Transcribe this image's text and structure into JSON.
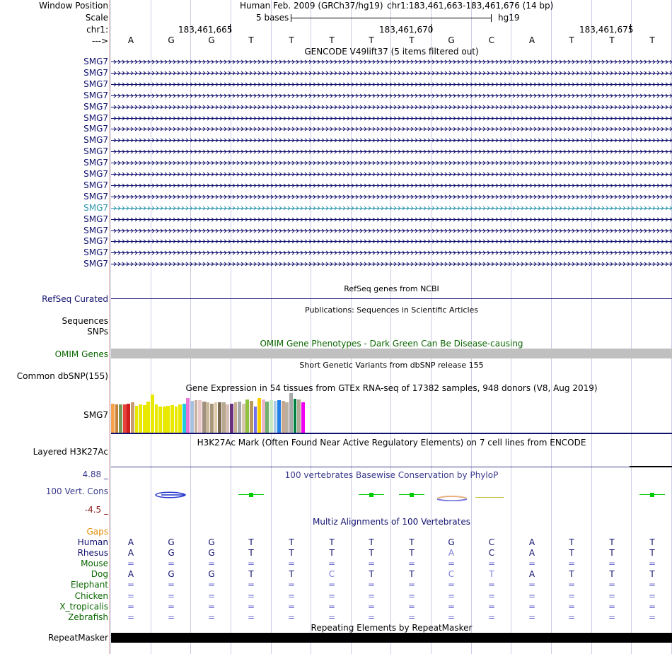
{
  "colors": {
    "gene_navy": "#10106e",
    "gene_highlight": "#2c96ad",
    "omim_green": "#0a6600",
    "gaps_orange": "#e08a00",
    "cons_blue": "#3a3a8c",
    "cons_red": "#8a1a1a",
    "phylop_green": "#00cc00",
    "repeat_black": "#000000",
    "omim_bar_gray": "#c0c0c0"
  },
  "header": {
    "window_position_label": "Window Position",
    "assembly": "Human Feb. 2009 (GRCh37/hg19)",
    "position": "chr1:183,461,663-183,461,676 (14 bp)",
    "scale_label": "Scale",
    "scale_text": "5 bases",
    "scale_db": "hg19",
    "chrom_label": "chr1:",
    "coord_ticks": [
      "183,461,665",
      "183,461,670",
      "183,461,675"
    ],
    "strand_label": "--->",
    "sequence": [
      "A",
      "G",
      "G",
      "T",
      "T",
      "T",
      "T",
      "T",
      "G",
      "C",
      "A",
      "T",
      "T",
      "T"
    ]
  },
  "gencode": {
    "title": "GENCODE V49lift37 (5 items filtered out)",
    "genes": [
      "SMG7",
      "SMG7",
      "SMG7",
      "SMG7",
      "SMG7",
      "SMG7",
      "SMG7",
      "SMG7",
      "SMG7",
      "SMG7",
      "SMG7",
      "SMG7",
      "SMG7",
      "SMG7",
      "SMG7",
      "SMG7",
      "SMG7",
      "SMG7",
      "SMG7"
    ],
    "highlight_index": 13
  },
  "refseq": {
    "title": "RefSeq genes from NCBI",
    "label": "RefSeq Curated"
  },
  "publications": {
    "title": "Publications: Sequences in Scientific Articles",
    "label1": "Sequences",
    "label2": "SNPs"
  },
  "omim": {
    "title": "OMIM Gene Phenotypes - Dark Green Can Be Disease-causing",
    "label": "OMIM Genes"
  },
  "dbsnp": {
    "title": "Short Genetic Variants from dbSNP release 155",
    "label": "Common dbSNP(155)"
  },
  "gtex": {
    "title": "Gene Expression in 54 tissues from GTEx RNA-seq of 17382 samples, 948 donors (V8, Aug 2019)",
    "label": "SMG7",
    "bars": [
      {
        "v": 0.74,
        "c": "#f5a24a"
      },
      {
        "v": 0.72,
        "c": "#c47f38"
      },
      {
        "v": 0.71,
        "c": "#7a9a5a"
      },
      {
        "v": 0.72,
        "c": "#e8423a"
      },
      {
        "v": 0.73,
        "c": "#d11e1e"
      },
      {
        "v": 0.76,
        "c": "#c89d74"
      },
      {
        "v": 0.68,
        "c": "#e8e800"
      },
      {
        "v": 0.72,
        "c": "#e8e800"
      },
      {
        "v": 0.7,
        "c": "#e8e800"
      },
      {
        "v": 0.78,
        "c": "#e8e800"
      },
      {
        "v": 0.96,
        "c": "#e8e800"
      },
      {
        "v": 0.72,
        "c": "#e8e800"
      },
      {
        "v": 0.66,
        "c": "#e8e800"
      },
      {
        "v": 0.66,
        "c": "#e8e800"
      },
      {
        "v": 0.68,
        "c": "#e8e800"
      },
      {
        "v": 0.7,
        "c": "#e8e800"
      },
      {
        "v": 0.66,
        "c": "#e8e800"
      },
      {
        "v": 0.72,
        "c": "#e8e800"
      },
      {
        "v": 0.74,
        "c": "#22ccdd"
      },
      {
        "v": 0.88,
        "c": "#ea74d6"
      },
      {
        "v": 0.8,
        "c": "#a8c0e0"
      },
      {
        "v": 0.82,
        "c": "#c8b0a0"
      },
      {
        "v": 0.82,
        "c": "#e8c8c8"
      },
      {
        "v": 0.78,
        "c": "#a09080"
      },
      {
        "v": 0.76,
        "c": "#c8b898"
      },
      {
        "v": 0.74,
        "c": "#a89878"
      },
      {
        "v": 0.76,
        "c": "#e0c8a8"
      },
      {
        "v": 0.76,
        "c": "#7a6a50"
      },
      {
        "v": 0.76,
        "c": "#b8a890"
      },
      {
        "v": 0.72,
        "c": "#d8c0b8"
      },
      {
        "v": 0.74,
        "c": "#6a3080"
      },
      {
        "v": 0.76,
        "c": "#c8b090"
      },
      {
        "v": 0.78,
        "c": "#a8a8a8"
      },
      {
        "v": 0.74,
        "c": "#d8c8b0"
      },
      {
        "v": 0.84,
        "c": "#90c040"
      },
      {
        "v": 0.8,
        "c": "#b89860"
      },
      {
        "v": 0.66,
        "c": "#7070f0"
      },
      {
        "v": 0.88,
        "c": "#f8d000"
      },
      {
        "v": 0.84,
        "c": "#e8b8c8"
      },
      {
        "v": 0.78,
        "c": "#70b070"
      },
      {
        "v": 0.82,
        "c": "#c8e8c0"
      },
      {
        "v": 0.8,
        "c": "#a8c8e8"
      },
      {
        "v": 0.82,
        "c": "#2080e8"
      },
      {
        "v": 0.8,
        "c": "#c8a890"
      },
      {
        "v": 0.76,
        "c": "#b8b0a0"
      },
      {
        "v": 1.0,
        "c": "#a8a8a8"
      },
      {
        "v": 0.86,
        "c": "#008040"
      },
      {
        "v": 0.84,
        "c": "#b0a890"
      },
      {
        "v": 0.76,
        "c": "#f000f0"
      }
    ]
  },
  "h3k27ac": {
    "title": "H3K27Ac Mark (Often Found Near Active Regulatory Elements) on 7 cell lines from ENCODE",
    "label": "Layered H3K27Ac"
  },
  "phylop": {
    "title": "100 vertebrates Basewise Conservation by PhyloP",
    "label": "100 Vert. Cons",
    "max_label": "4.88 _",
    "min_label": "-4.5 _",
    "marks": [
      {
        "pos": 3,
        "type": "green"
      },
      {
        "pos": 6,
        "type": "green"
      },
      {
        "pos": 7,
        "type": "green"
      },
      {
        "pos": 13,
        "type": "green"
      }
    ]
  },
  "multiz": {
    "title": "Multiz Alignments of 100 Vertebrates",
    "gaps_label": "Gaps",
    "species": [
      {
        "name": "Human",
        "seq": [
          "A",
          "G",
          "G",
          "T",
          "T",
          "T",
          "T",
          "T",
          "G",
          "C",
          "A",
          "T",
          "T",
          "T"
        ],
        "dim": []
      },
      {
        "name": "Rhesus",
        "seq": [
          "A",
          "G",
          "G",
          "T",
          "T",
          "T",
          "T",
          "T",
          "A",
          "C",
          "A",
          "T",
          "T",
          "T"
        ],
        "dim": [
          8
        ]
      },
      {
        "name": "Mouse",
        "seq": [
          "=",
          "=",
          "=",
          "=",
          "=",
          "=",
          "=",
          "=",
          "=",
          "=",
          "=",
          "=",
          "=",
          "="
        ],
        "dim": []
      },
      {
        "name": "Dog",
        "seq": [
          "A",
          "G",
          "G",
          "T",
          "T",
          "C",
          "T",
          "T",
          "C",
          "T",
          "A",
          "T",
          "T",
          "T"
        ],
        "dim": [
          5,
          8,
          9
        ]
      },
      {
        "name": "Elephant",
        "seq": [
          "=",
          "=",
          "=",
          "=",
          "=",
          "=",
          "=",
          "=",
          "=",
          "=",
          "=",
          "=",
          "=",
          "="
        ],
        "dim": []
      },
      {
        "name": "Chicken",
        "seq": [
          "=",
          "=",
          "=",
          "=",
          "=",
          "=",
          "=",
          "=",
          "=",
          "=",
          "=",
          "=",
          "=",
          "="
        ],
        "dim": []
      },
      {
        "name": "X_tropicalis",
        "seq": [
          "=",
          "=",
          "=",
          "=",
          "=",
          "=",
          "=",
          "=",
          "=",
          "=",
          "=",
          "=",
          "=",
          "="
        ],
        "dim": []
      },
      {
        "name": "Zebrafish",
        "seq": [
          "=",
          "=",
          "=",
          "=",
          "=",
          "=",
          "=",
          "=",
          "=",
          "=",
          "=",
          "=",
          "=",
          "="
        ],
        "dim": []
      }
    ]
  },
  "repeatmasker": {
    "title": "Repeating Elements by RepeatMasker",
    "label": "RepeatMasker"
  }
}
